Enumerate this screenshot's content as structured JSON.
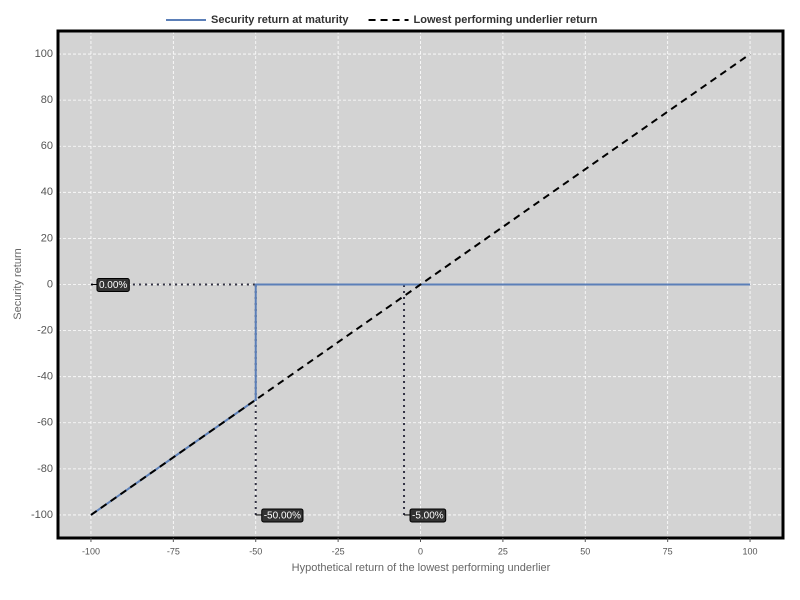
{
  "chart_data": {
    "type": "line",
    "x_label": "Hypothetical return of the lowest performing underlier",
    "y_label": "Security return",
    "xlim": [
      -110,
      110
    ],
    "ylim": [
      -110,
      110
    ],
    "xticks": [
      -100,
      -75,
      -50,
      -25,
      0,
      25,
      50,
      75,
      100
    ],
    "yticks": [
      -100,
      -80,
      -60,
      -40,
      -20,
      0,
      20,
      40,
      60,
      80,
      100
    ],
    "grid": true,
    "legend": "top",
    "series": [
      {
        "name": "Security return at maturity",
        "color": "#5b7fb8",
        "style": "solid",
        "x": [
          -100,
          -50,
          -50,
          100
        ],
        "y": [
          -100,
          -50,
          0,
          0
        ]
      },
      {
        "name": "Lowest performing underlier return",
        "color": "#000000",
        "style": "dashed",
        "x": [
          -100,
          100
        ],
        "y": [
          -100,
          100
        ]
      }
    ],
    "annotations": [
      {
        "axis": "y",
        "value": 0,
        "label": "0.00%"
      },
      {
        "axis": "x",
        "value": -50,
        "label": "-50.00%"
      },
      {
        "axis": "x",
        "value": -5,
        "label": "-5.00%"
      }
    ]
  }
}
